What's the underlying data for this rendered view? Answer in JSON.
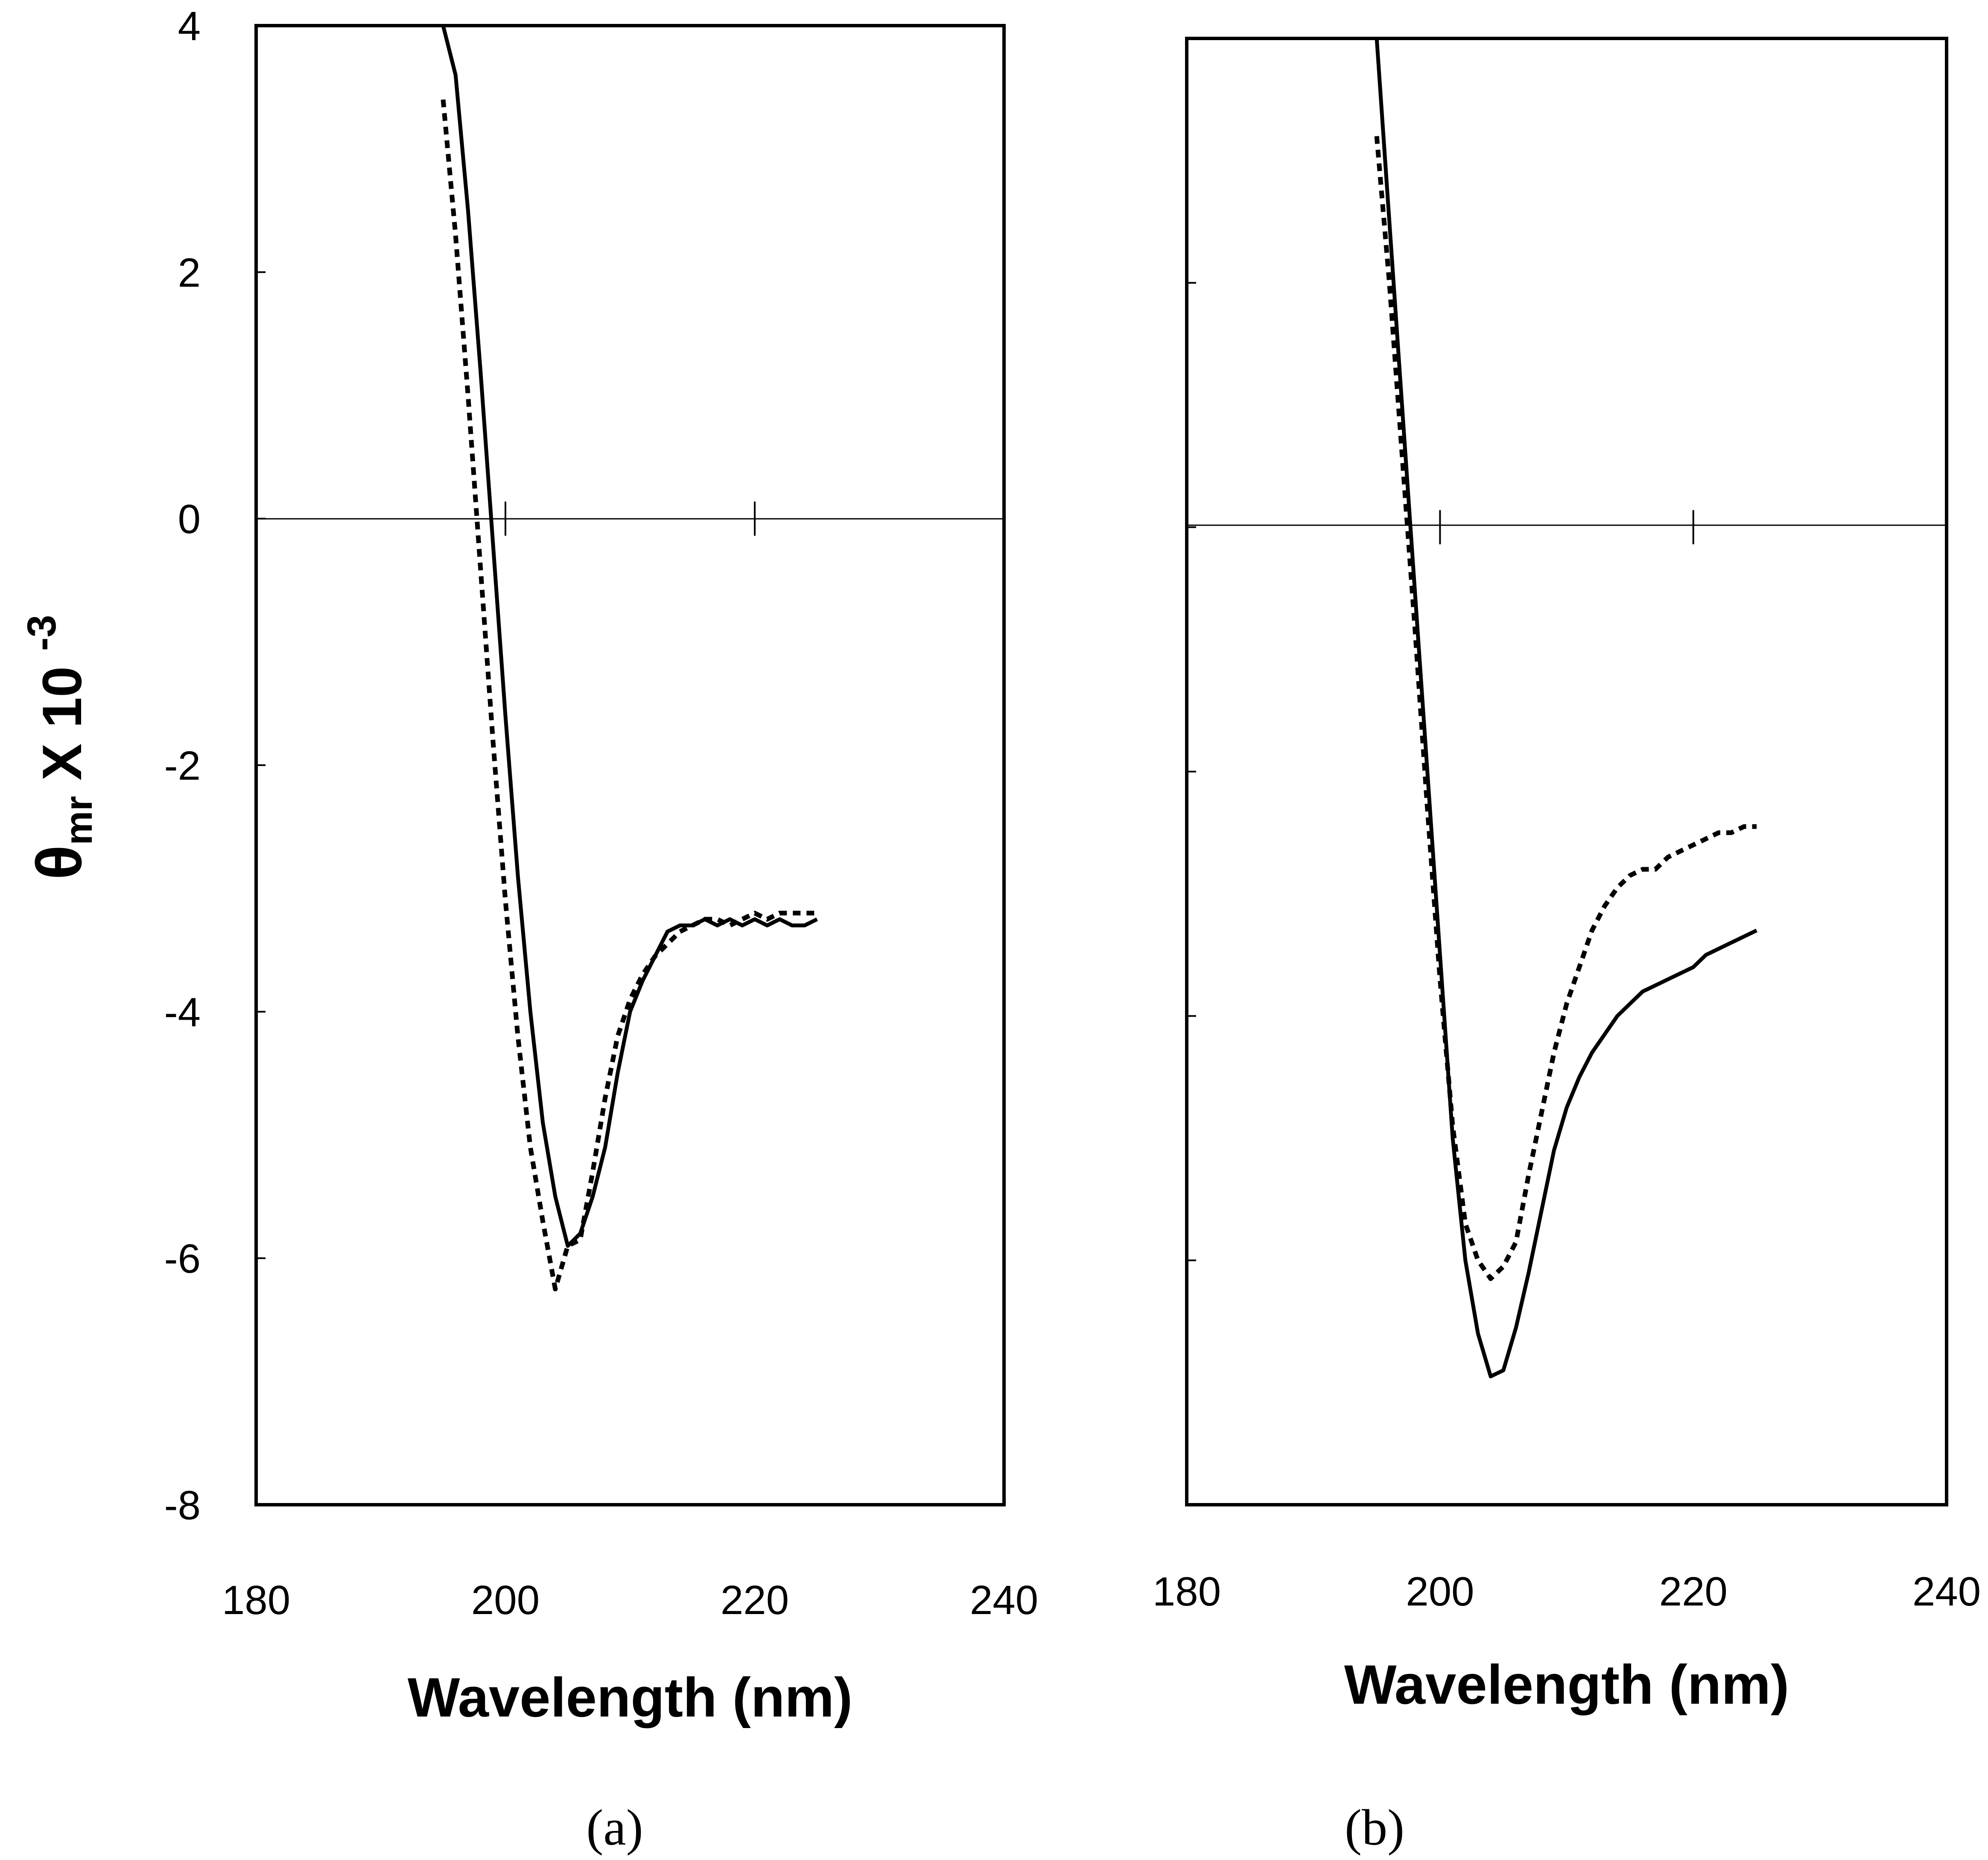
{
  "chart_data": [
    {
      "panel": "(a)",
      "type": "line",
      "xlabel": "Wavelength (nm)",
      "ylabel": "θmr X 10 -3",
      "ylabel_main": "θ",
      "ylabel_sub": "mr",
      "ylabel_tail": " X 10 ",
      "ylabel_exp": "-3",
      "xlim": [
        180,
        240
      ],
      "ylim": [
        -8,
        4
      ],
      "xticks": [
        "180",
        "200",
        "220",
        "240"
      ],
      "yticks": [
        "4",
        "2",
        "0",
        "-2",
        "-4",
        "-6",
        "-8"
      ],
      "show_y_tick_labels": true,
      "series": [
        {
          "name": "solid",
          "style": "solid",
          "x": [
            195,
            196,
            197,
            198,
            199,
            200,
            201,
            202,
            203,
            204,
            205,
            206,
            207,
            208,
            209,
            210,
            211,
            212,
            213,
            214,
            215,
            216,
            217,
            218,
            219,
            220,
            221,
            222,
            223,
            224,
            225
          ],
          "y": [
            4.0,
            3.6,
            2.5,
            1.2,
            -0.2,
            -1.6,
            -2.9,
            -4.0,
            -4.9,
            -5.5,
            -5.9,
            -5.8,
            -5.5,
            -5.1,
            -4.5,
            -4.0,
            -3.75,
            -3.55,
            -3.35,
            -3.3,
            -3.3,
            -3.25,
            -3.3,
            -3.25,
            -3.3,
            -3.25,
            -3.3,
            -3.25,
            -3.3,
            -3.3,
            -3.25
          ]
        },
        {
          "name": "dotted",
          "style": "dotted",
          "x": [
            195,
            196,
            197,
            198,
            199,
            200,
            201,
            202,
            203,
            204,
            205,
            206,
            207,
            208,
            209,
            210,
            211,
            212,
            213,
            214,
            215,
            216,
            217,
            218,
            219,
            220,
            221,
            222,
            223,
            224,
            225
          ],
          "y": [
            3.4,
            2.3,
            1.0,
            -0.4,
            -1.8,
            -3.1,
            -4.2,
            -5.1,
            -5.7,
            -6.25,
            -5.9,
            -5.85,
            -5.3,
            -4.7,
            -4.2,
            -3.9,
            -3.7,
            -3.55,
            -3.45,
            -3.35,
            -3.3,
            -3.25,
            -3.25,
            -3.3,
            -3.25,
            -3.2,
            -3.25,
            -3.2,
            -3.2,
            -3.2,
            -3.2
          ]
        }
      ]
    },
    {
      "panel": "(b)",
      "type": "line",
      "xlabel": "Wavelength (nm)",
      "xlim": [
        180,
        240
      ],
      "ylim": [
        -8,
        4
      ],
      "xticks": [
        "180",
        "200",
        "220",
        "240"
      ],
      "yticks": [
        "4",
        "2",
        "0",
        "-2",
        "-4",
        "-6",
        "-8"
      ],
      "show_y_tick_labels": false,
      "series": [
        {
          "name": "solid",
          "style": "solid",
          "x": [
            195,
            196,
            197,
            198,
            199,
            200,
            201,
            202,
            203,
            204,
            205,
            206,
            207,
            208,
            209,
            210,
            211,
            212,
            213,
            214,
            215,
            216,
            217,
            218,
            219,
            220,
            221,
            222,
            223,
            224,
            225
          ],
          "y": [
            4.0,
            2.5,
            1.0,
            -0.5,
            -2.0,
            -3.5,
            -5.0,
            -6.0,
            -6.6,
            -6.95,
            -6.9,
            -6.55,
            -6.1,
            -5.6,
            -5.1,
            -4.75,
            -4.5,
            -4.3,
            -4.15,
            -4.0,
            -3.9,
            -3.8,
            -3.75,
            -3.7,
            -3.65,
            -3.6,
            -3.5,
            -3.45,
            -3.4,
            -3.35,
            -3.3
          ]
        },
        {
          "name": "dotted",
          "style": "dotted",
          "x": [
            195,
            196,
            197,
            198,
            199,
            200,
            201,
            202,
            203,
            204,
            205,
            206,
            207,
            208,
            209,
            210,
            211,
            212,
            213,
            214,
            215,
            216,
            217,
            218,
            219,
            220,
            221,
            222,
            223,
            224,
            225
          ],
          "y": [
            3.2,
            2.0,
            0.6,
            -0.8,
            -2.3,
            -3.7,
            -4.9,
            -5.7,
            -6.0,
            -6.15,
            -6.05,
            -5.85,
            -5.3,
            -4.8,
            -4.3,
            -3.9,
            -3.6,
            -3.3,
            -3.1,
            -2.95,
            -2.85,
            -2.8,
            -2.8,
            -2.7,
            -2.65,
            -2.6,
            -2.55,
            -2.5,
            -2.5,
            -2.45,
            -2.45
          ]
        }
      ]
    }
  ]
}
